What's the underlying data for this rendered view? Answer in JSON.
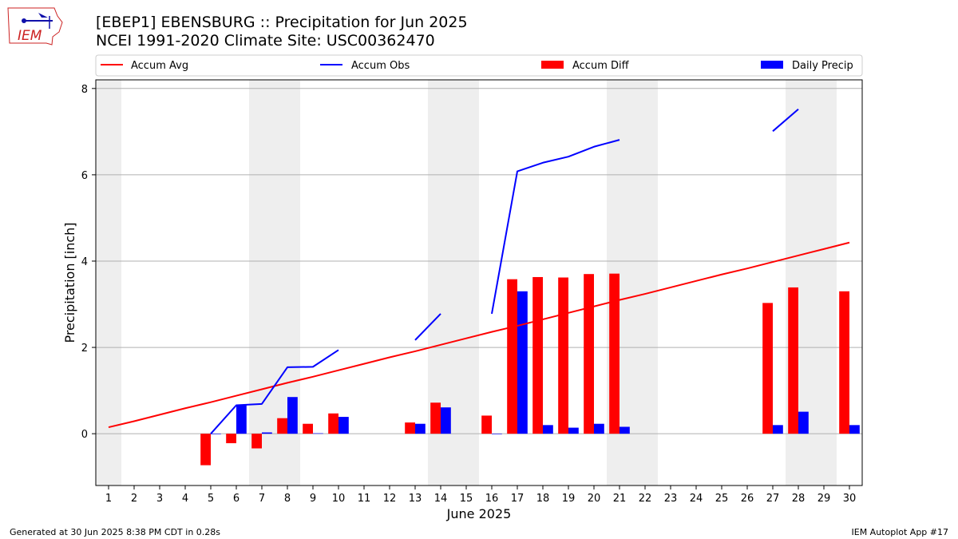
{
  "header": {
    "title_line1": "[EBEP1] EBENSBURG :: Precipitation for Jun 2025",
    "title_line2": "NCEI 1991-2020 Climate Site: USC00362470"
  },
  "logo": {
    "text": "IEM",
    "icon": "iem-iowa-logo"
  },
  "footer": {
    "generated": "Generated at 30 Jun 2025 8:38 PM CDT in 0.28s",
    "app": "IEM Autoplot App #17"
  },
  "colors": {
    "avg": "#ff0000",
    "obs": "#0000ff",
    "diff": "#ff0000",
    "daily": "#0000ff",
    "weekend_shade": "#eeeeee",
    "grid": "#b0b0b0"
  },
  "chart_data": {
    "type": "bar",
    "title": "[EBEP1] EBENSBURG :: Precipitation for Jun 2025",
    "subtitle": "NCEI 1991-2020 Climate Site: USC00362470",
    "xlabel": "June 2025",
    "ylabel": "Precipitation [inch]",
    "ylim": [
      -1.2,
      8.2
    ],
    "xlim": [
      0.5,
      30.5
    ],
    "yticks": [
      0,
      2,
      4,
      6,
      8
    ],
    "grid": "horizontal",
    "legend_placement": "top, above plot",
    "legend": [
      "Accum Avg",
      "Accum Obs",
      "Accum Diff",
      "Daily Precip"
    ],
    "days": [
      1,
      2,
      3,
      4,
      5,
      6,
      7,
      8,
      9,
      10,
      11,
      12,
      13,
      14,
      15,
      16,
      17,
      18,
      19,
      20,
      21,
      22,
      23,
      24,
      25,
      26,
      27,
      28,
      29,
      30
    ],
    "shaded_days": [
      1,
      7,
      8,
      14,
      15,
      21,
      22,
      28,
      29
    ],
    "series": [
      {
        "name": "Accum Avg",
        "kind": "line",
        "values": [
          0.15,
          0.29,
          0.44,
          0.59,
          0.73,
          0.88,
          1.03,
          1.18,
          1.32,
          1.47,
          1.62,
          1.77,
          1.91,
          2.06,
          2.21,
          2.36,
          2.5,
          2.65,
          2.8,
          2.95,
          3.1,
          3.24,
          3.39,
          3.54,
          3.69,
          3.83,
          3.98,
          4.13,
          4.28,
          4.43
        ]
      },
      {
        "name": "Accum Obs",
        "kind": "line",
        "values": [
          null,
          null,
          null,
          null,
          0.0,
          0.66,
          0.69,
          1.54,
          1.55,
          1.94,
          null,
          null,
          2.17,
          2.78,
          null,
          2.78,
          6.08,
          6.28,
          6.42,
          6.65,
          6.81,
          null,
          null,
          null,
          null,
          null,
          7.01,
          7.52,
          null,
          null
        ]
      },
      {
        "name": "Accum Diff",
        "kind": "bar",
        "values": [
          null,
          null,
          null,
          null,
          -0.73,
          -0.22,
          -0.34,
          0.36,
          0.23,
          0.47,
          null,
          null,
          0.26,
          0.72,
          null,
          0.42,
          3.58,
          3.63,
          3.62,
          3.7,
          3.71,
          null,
          null,
          null,
          null,
          null,
          3.03,
          3.39,
          null,
          3.3
        ]
      },
      {
        "name": "Daily Precip",
        "kind": "bar",
        "values": [
          null,
          null,
          null,
          null,
          0.0,
          0.66,
          0.03,
          0.85,
          0.01,
          0.39,
          null,
          null,
          0.23,
          0.61,
          null,
          0.0,
          3.3,
          0.2,
          0.14,
          0.23,
          0.16,
          null,
          null,
          null,
          null,
          null,
          0.2,
          0.51,
          null,
          0.2
        ]
      }
    ]
  }
}
